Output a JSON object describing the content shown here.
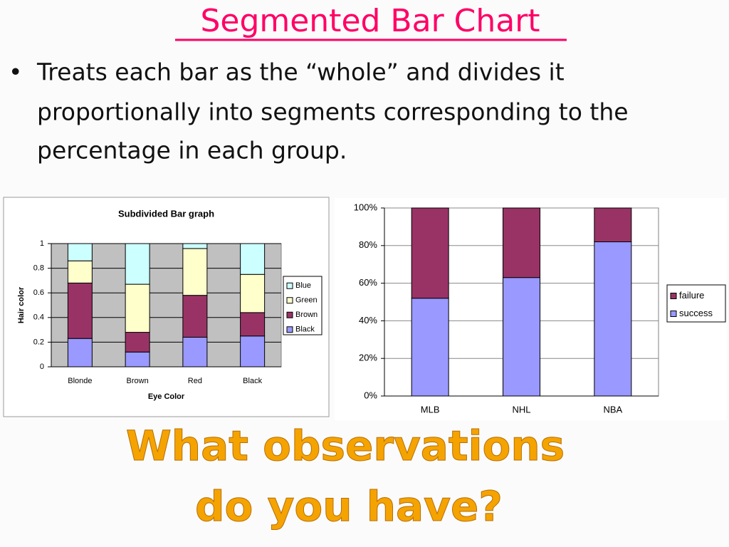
{
  "slide": {
    "title": "Segmented Bar Chart",
    "bullet": [
      "Treats each bar as the “whole” and divides it",
      "proportionally into segments corresponding to the",
      "percentage in each group."
    ],
    "question": [
      "What observations",
      "do you have?"
    ]
  },
  "chart_data": [
    {
      "type": "stacked-bar",
      "title": "Subdivided Bar graph",
      "x_label": "Eye Color",
      "y_label": "Hair color",
      "categories": [
        "Blonde",
        "Brown",
        "Red",
        "Black"
      ],
      "series": [
        {
          "name": "Black",
          "color": "#9999ff",
          "values": [
            0.23,
            0.12,
            0.24,
            0.25
          ]
        },
        {
          "name": "Brown",
          "color": "#993366",
          "values": [
            0.45,
            0.16,
            0.34,
            0.19
          ]
        },
        {
          "name": "Green",
          "color": "#ffffcc",
          "values": [
            0.18,
            0.39,
            0.38,
            0.31
          ]
        },
        {
          "name": "Blue",
          "color": "#ccffff",
          "values": [
            0.14,
            0.33,
            0.04,
            0.25
          ]
        }
      ],
      "ylim": [
        0,
        1
      ],
      "yticks": [
        0,
        0.2,
        0.4,
        0.6,
        0.8,
        1
      ],
      "grid": true
    },
    {
      "type": "stacked-bar",
      "categories": [
        "MLB",
        "NHL",
        "NBA"
      ],
      "series": [
        {
          "name": "success",
          "color": "#9999ff",
          "values": [
            52,
            63,
            82
          ]
        },
        {
          "name": "failure",
          "color": "#993366",
          "values": [
            48,
            37,
            18
          ]
        }
      ],
      "ylim": [
        0,
        100
      ],
      "yticks": [
        {
          "value": 0,
          "label": "0%"
        },
        {
          "value": 20,
          "label": "20%"
        },
        {
          "value": 40,
          "label": "40%"
        },
        {
          "value": 60,
          "label": "60%"
        },
        {
          "value": 80,
          "label": "80%"
        },
        {
          "value": 100,
          "label": "100%"
        }
      ],
      "grid": true
    }
  ]
}
